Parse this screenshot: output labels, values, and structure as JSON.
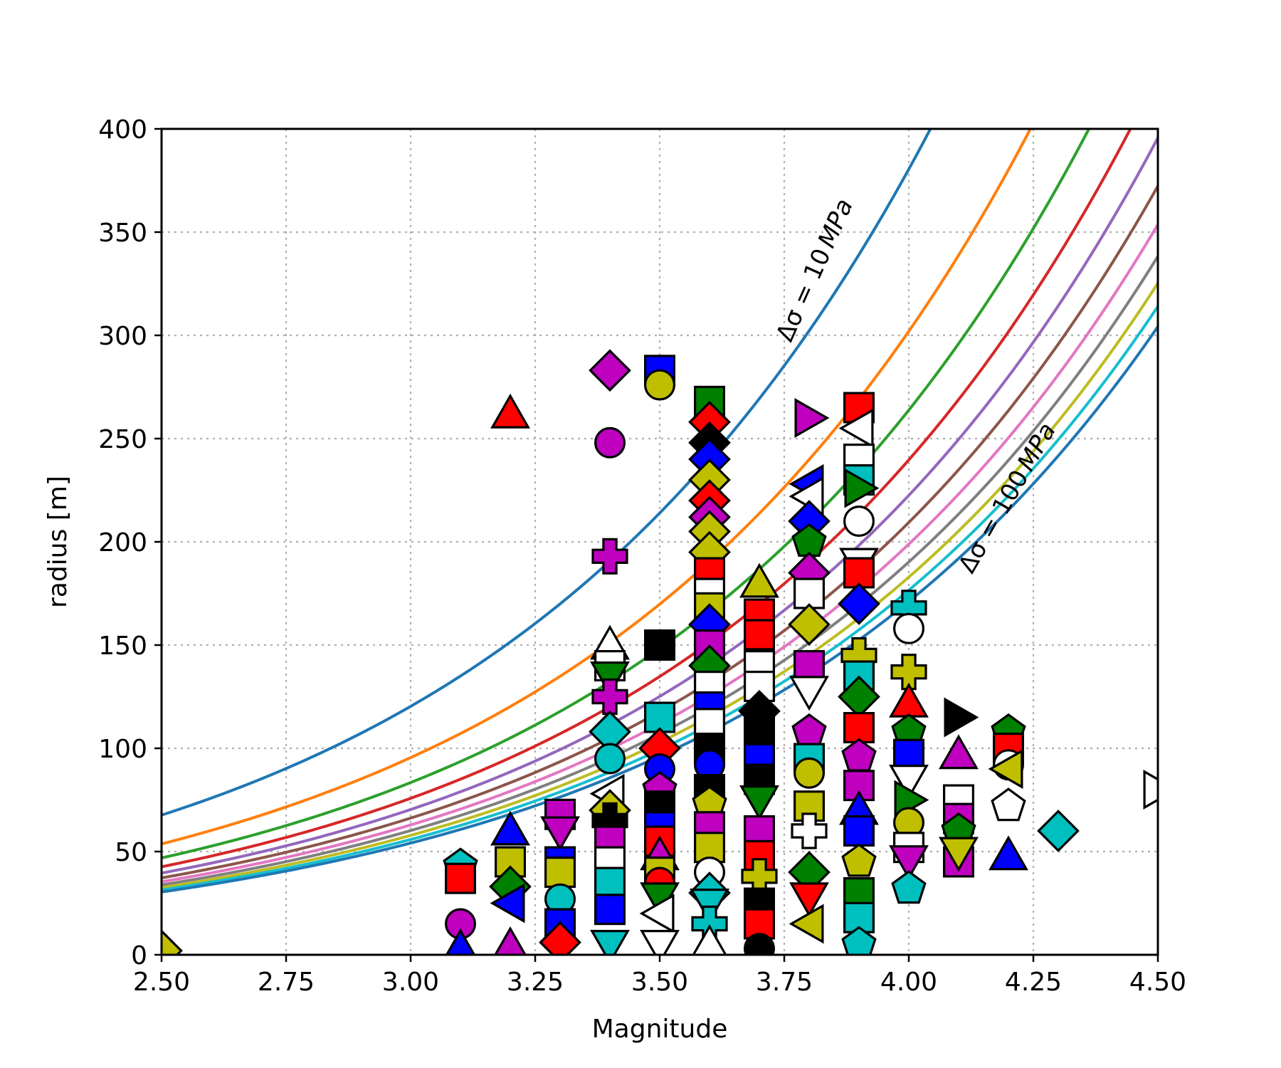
{
  "chart_data": {
    "type": "scatter",
    "title": "",
    "xlabel": "Magnitude",
    "ylabel": "radius [m]",
    "xlim": [
      2.5,
      4.5
    ],
    "ylim": [
      0,
      400
    ],
    "xticks": [
      "2.50",
      "2.75",
      "3.00",
      "3.25",
      "3.50",
      "3.75",
      "4.00",
      "4.25",
      "4.50"
    ],
    "yticks": [
      "0",
      "50",
      "100",
      "150",
      "200",
      "250",
      "300",
      "350",
      "400"
    ],
    "grid": true,
    "annotations": [
      {
        "text_prefix": "Δσ = ",
        "text_value": "10",
        "text_unit": "MPa"
      },
      {
        "text_prefix": "Δσ = ",
        "text_value": "100",
        "text_unit": "MPa"
      }
    ],
    "curves": {
      "x_range": [
        2.5,
        4.5
      ],
      "series": [
        {
          "stress_drop_mpa": 10,
          "color": "#1f77b4"
        },
        {
          "stress_drop_mpa": 20,
          "color": "#ff7f0e"
        },
        {
          "stress_drop_mpa": 30,
          "color": "#2ca02c"
        },
        {
          "stress_drop_mpa": 40,
          "color": "#d62728"
        },
        {
          "stress_drop_mpa": 50,
          "color": "#9467bd"
        },
        {
          "stress_drop_mpa": 60,
          "color": "#8c564b"
        },
        {
          "stress_drop_mpa": 70,
          "color": "#e377c2"
        },
        {
          "stress_drop_mpa": 80,
          "color": "#7f7f7f"
        },
        {
          "stress_drop_mpa": 90,
          "color": "#bcbd22"
        },
        {
          "stress_drop_mpa": 100,
          "color": "#17becf"
        },
        {
          "stress_drop_mpa": 110,
          "color": "#1f77b4"
        }
      ]
    },
    "points": [
      {
        "x": 2.5,
        "y": 2,
        "s": "d",
        "c": "y"
      },
      {
        "x": 3.1,
        "y": 43,
        "s": "p",
        "c": "c"
      },
      {
        "x": 3.1,
        "y": 37,
        "s": "s",
        "c": "r"
      },
      {
        "x": 3.1,
        "y": 15,
        "s": "o",
        "c": "m"
      },
      {
        "x": 3.1,
        "y": 3,
        "s": "^",
        "c": "b"
      },
      {
        "x": 3.2,
        "y": 262,
        "s": "^",
        "c": "r"
      },
      {
        "x": 3.2,
        "y": 60,
        "s": "^",
        "c": "b"
      },
      {
        "x": 3.2,
        "y": 45,
        "s": "s",
        "c": "y"
      },
      {
        "x": 3.2,
        "y": 33,
        "s": "d",
        "c": "g"
      },
      {
        "x": 3.2,
        "y": 25,
        "s": "<",
        "c": "b"
      },
      {
        "x": 3.2,
        "y": 4,
        "s": "^",
        "c": "m"
      },
      {
        "x": 3.3,
        "y": 68,
        "s": "s",
        "c": "m"
      },
      {
        "x": 3.3,
        "y": 60,
        "s": "v",
        "c": "m"
      },
      {
        "x": 3.3,
        "y": 45,
        "s": "s",
        "c": "b"
      },
      {
        "x": 3.3,
        "y": 40,
        "s": "s",
        "c": "y"
      },
      {
        "x": 3.3,
        "y": 27,
        "s": "o",
        "c": "c"
      },
      {
        "x": 3.3,
        "y": 15,
        "s": "s",
        "c": "b"
      },
      {
        "x": 3.3,
        "y": 6,
        "s": "d",
        "c": "r"
      },
      {
        "x": 3.4,
        "y": 283,
        "s": "d",
        "c": "m"
      },
      {
        "x": 3.4,
        "y": 248,
        "s": "o",
        "c": "m"
      },
      {
        "x": 3.4,
        "y": 193,
        "s": "P",
        "c": "m"
      },
      {
        "x": 3.4,
        "y": 150,
        "s": "^",
        "c": "w"
      },
      {
        "x": 3.4,
        "y": 140,
        "s": "s",
        "c": "w"
      },
      {
        "x": 3.4,
        "y": 135,
        "s": "v",
        "c": "g"
      },
      {
        "x": 3.4,
        "y": 125,
        "s": "P",
        "c": "m"
      },
      {
        "x": 3.4,
        "y": 108,
        "s": "d",
        "c": "c"
      },
      {
        "x": 3.4,
        "y": 95,
        "s": "o",
        "c": "c"
      },
      {
        "x": 3.4,
        "y": 78,
        "s": "<",
        "c": "w"
      },
      {
        "x": 3.4,
        "y": 70,
        "s": "d",
        "c": "y"
      },
      {
        "x": 3.4,
        "y": 65,
        "s": "P",
        "c": "k"
      },
      {
        "x": 3.4,
        "y": 55,
        "s": "s",
        "c": "m"
      },
      {
        "x": 3.4,
        "y": 45,
        "s": "s",
        "c": "w"
      },
      {
        "x": 3.4,
        "y": 35,
        "s": "s",
        "c": "c"
      },
      {
        "x": 3.4,
        "y": 22,
        "s": "s",
        "c": "b"
      },
      {
        "x": 3.4,
        "y": 5,
        "s": "v",
        "c": "c"
      },
      {
        "x": 3.5,
        "y": 283,
        "s": "s",
        "c": "b"
      },
      {
        "x": 3.5,
        "y": 276,
        "s": "o",
        "c": "y"
      },
      {
        "x": 3.5,
        "y": 150,
        "s": "s",
        "c": "k"
      },
      {
        "x": 3.5,
        "y": 115,
        "s": "s",
        "c": "c"
      },
      {
        "x": 3.5,
        "y": 100,
        "s": "d",
        "c": "r"
      },
      {
        "x": 3.5,
        "y": 90,
        "s": "o",
        "c": "b"
      },
      {
        "x": 3.5,
        "y": 80,
        "s": "p",
        "c": "m"
      },
      {
        "x": 3.5,
        "y": 72,
        "s": "s",
        "c": "k"
      },
      {
        "x": 3.5,
        "y": 62,
        "s": "s",
        "c": "b"
      },
      {
        "x": 3.5,
        "y": 55,
        "s": "s",
        "c": "r"
      },
      {
        "x": 3.5,
        "y": 48,
        "s": "^",
        "c": "m"
      },
      {
        "x": 3.5,
        "y": 40,
        "s": "s",
        "c": "y"
      },
      {
        "x": 3.5,
        "y": 35,
        "s": "o",
        "c": "r"
      },
      {
        "x": 3.5,
        "y": 28,
        "s": "v",
        "c": "g"
      },
      {
        "x": 3.5,
        "y": 20,
        "s": "<",
        "c": "w"
      },
      {
        "x": 3.5,
        "y": 5,
        "s": "v",
        "c": "w"
      },
      {
        "x": 3.6,
        "y": 268,
        "s": "s",
        "c": "g"
      },
      {
        "x": 3.6,
        "y": 258,
        "s": "d",
        "c": "r"
      },
      {
        "x": 3.6,
        "y": 248,
        "s": "d",
        "c": "k"
      },
      {
        "x": 3.6,
        "y": 240,
        "s": "d",
        "c": "b"
      },
      {
        "x": 3.6,
        "y": 230,
        "s": "d",
        "c": "y"
      },
      {
        "x": 3.6,
        "y": 220,
        "s": "d",
        "c": "r"
      },
      {
        "x": 3.6,
        "y": 212,
        "s": "d",
        "c": "m"
      },
      {
        "x": 3.6,
        "y": 205,
        "s": "d",
        "c": "y"
      },
      {
        "x": 3.6,
        "y": 195,
        "s": "d",
        "c": "y"
      },
      {
        "x": 3.6,
        "y": 185,
        "s": "s",
        "c": "r"
      },
      {
        "x": 3.6,
        "y": 175,
        "s": "s",
        "c": "w"
      },
      {
        "x": 3.6,
        "y": 168,
        "s": "s",
        "c": "y"
      },
      {
        "x": 3.6,
        "y": 160,
        "s": "d",
        "c": "b"
      },
      {
        "x": 3.6,
        "y": 150,
        "s": "s",
        "c": "m"
      },
      {
        "x": 3.6,
        "y": 140,
        "s": "d",
        "c": "g"
      },
      {
        "x": 3.6,
        "y": 130,
        "s": "s",
        "c": "w"
      },
      {
        "x": 3.6,
        "y": 120,
        "s": "s",
        "c": "b"
      },
      {
        "x": 3.6,
        "y": 112,
        "s": "s",
        "c": "w"
      },
      {
        "x": 3.6,
        "y": 100,
        "s": "s",
        "c": "k"
      },
      {
        "x": 3.6,
        "y": 92,
        "s": "o",
        "c": "b"
      },
      {
        "x": 3.6,
        "y": 80,
        "s": "s",
        "c": "k"
      },
      {
        "x": 3.6,
        "y": 73,
        "s": "p",
        "c": "y"
      },
      {
        "x": 3.6,
        "y": 62,
        "s": "s",
        "c": "m"
      },
      {
        "x": 3.6,
        "y": 52,
        "s": "s",
        "c": "y"
      },
      {
        "x": 3.6,
        "y": 40,
        "s": "o",
        "c": "w"
      },
      {
        "x": 3.6,
        "y": 30,
        "s": "d",
        "c": "c"
      },
      {
        "x": 3.6,
        "y": 25,
        "s": "v",
        "c": "c"
      },
      {
        "x": 3.6,
        "y": 15,
        "s": "P",
        "c": "c"
      },
      {
        "x": 3.6,
        "y": 5,
        "s": "^",
        "c": "w"
      },
      {
        "x": 3.7,
        "y": 180,
        "s": "^",
        "c": "y"
      },
      {
        "x": 3.7,
        "y": 165,
        "s": "s",
        "c": "r"
      },
      {
        "x": 3.7,
        "y": 155,
        "s": "s",
        "c": "r"
      },
      {
        "x": 3.7,
        "y": 140,
        "s": "s",
        "c": "w"
      },
      {
        "x": 3.7,
        "y": 130,
        "s": "s",
        "c": "w"
      },
      {
        "x": 3.7,
        "y": 118,
        "s": "d",
        "c": "k"
      },
      {
        "x": 3.7,
        "y": 108,
        "s": "s",
        "c": "k"
      },
      {
        "x": 3.7,
        "y": 95,
        "s": "s",
        "c": "b"
      },
      {
        "x": 3.7,
        "y": 85,
        "s": "s",
        "c": "k"
      },
      {
        "x": 3.7,
        "y": 75,
        "s": "v",
        "c": "g"
      },
      {
        "x": 3.7,
        "y": 60,
        "s": "s",
        "c": "m"
      },
      {
        "x": 3.7,
        "y": 48,
        "s": "s",
        "c": "r"
      },
      {
        "x": 3.7,
        "y": 38,
        "s": "P",
        "c": "y"
      },
      {
        "x": 3.7,
        "y": 25,
        "s": "s",
        "c": "k"
      },
      {
        "x": 3.7,
        "y": 15,
        "s": "s",
        "c": "r"
      },
      {
        "x": 3.7,
        "y": 3,
        "s": "o",
        "c": "k"
      },
      {
        "x": 3.8,
        "y": 260,
        "s": ">",
        "c": "m"
      },
      {
        "x": 3.8,
        "y": 228,
        "s": "<",
        "c": "b"
      },
      {
        "x": 3.8,
        "y": 222,
        "s": "<",
        "c": "w"
      },
      {
        "x": 3.8,
        "y": 210,
        "s": "d",
        "c": "b"
      },
      {
        "x": 3.8,
        "y": 200,
        "s": "p",
        "c": "g"
      },
      {
        "x": 3.8,
        "y": 185,
        "s": "d",
        "c": "m"
      },
      {
        "x": 3.8,
        "y": 175,
        "s": "s",
        "c": "w"
      },
      {
        "x": 3.8,
        "y": 160,
        "s": "d",
        "c": "y"
      },
      {
        "x": 3.8,
        "y": 140,
        "s": "s",
        "c": "m"
      },
      {
        "x": 3.8,
        "y": 128,
        "s": "v",
        "c": "w"
      },
      {
        "x": 3.8,
        "y": 108,
        "s": "p",
        "c": "m"
      },
      {
        "x": 3.8,
        "y": 95,
        "s": "s",
        "c": "c"
      },
      {
        "x": 3.8,
        "y": 88,
        "s": "o",
        "c": "y"
      },
      {
        "x": 3.8,
        "y": 72,
        "s": "s",
        "c": "y"
      },
      {
        "x": 3.8,
        "y": 60,
        "s": "P",
        "c": "w"
      },
      {
        "x": 3.8,
        "y": 40,
        "s": "d",
        "c": "g"
      },
      {
        "x": 3.8,
        "y": 28,
        "s": "v",
        "c": "r"
      },
      {
        "x": 3.8,
        "y": 15,
        "s": "<",
        "c": "y"
      },
      {
        "x": 3.9,
        "y": 265,
        "s": "s",
        "c": "r"
      },
      {
        "x": 3.9,
        "y": 255,
        "s": "<",
        "c": "w"
      },
      {
        "x": 3.9,
        "y": 240,
        "s": "s",
        "c": "w"
      },
      {
        "x": 3.9,
        "y": 230,
        "s": "s",
        "c": "c"
      },
      {
        "x": 3.9,
        "y": 226,
        "s": ">",
        "c": "g"
      },
      {
        "x": 3.9,
        "y": 210,
        "s": "o",
        "c": "w"
      },
      {
        "x": 3.9,
        "y": 190,
        "s": "v",
        "c": "w"
      },
      {
        "x": 3.9,
        "y": 185,
        "s": "s",
        "c": "r"
      },
      {
        "x": 3.9,
        "y": 170,
        "s": "d",
        "c": "b"
      },
      {
        "x": 3.9,
        "y": 145,
        "s": "P",
        "c": "y"
      },
      {
        "x": 3.9,
        "y": 135,
        "s": "s",
        "c": "c"
      },
      {
        "x": 3.9,
        "y": 125,
        "s": "d",
        "c": "g"
      },
      {
        "x": 3.9,
        "y": 110,
        "s": "s",
        "c": "r"
      },
      {
        "x": 3.9,
        "y": 96,
        "s": "p",
        "c": "m"
      },
      {
        "x": 3.9,
        "y": 82,
        "s": "s",
        "c": "m"
      },
      {
        "x": 3.9,
        "y": 70,
        "s": "^",
        "c": "b"
      },
      {
        "x": 3.9,
        "y": 60,
        "s": "s",
        "c": "b"
      },
      {
        "x": 3.9,
        "y": 45,
        "s": "p",
        "c": "y"
      },
      {
        "x": 3.9,
        "y": 30,
        "s": "s",
        "c": "g"
      },
      {
        "x": 3.9,
        "y": 18,
        "s": "s",
        "c": "c"
      },
      {
        "x": 3.9,
        "y": 5,
        "s": "p",
        "c": "c"
      },
      {
        "x": 4.0,
        "y": 168,
        "s": "P",
        "c": "c"
      },
      {
        "x": 4.0,
        "y": 158,
        "s": "o",
        "c": "w"
      },
      {
        "x": 4.0,
        "y": 137,
        "s": "P",
        "c": "y"
      },
      {
        "x": 4.0,
        "y": 122,
        "s": "^",
        "c": "r"
      },
      {
        "x": 4.0,
        "y": 108,
        "s": "p",
        "c": "g"
      },
      {
        "x": 4.0,
        "y": 97,
        "s": "s",
        "c": "b"
      },
      {
        "x": 4.0,
        "y": 85,
        "s": "v",
        "c": "w"
      },
      {
        "x": 4.0,
        "y": 75,
        "s": ">",
        "c": "g"
      },
      {
        "x": 4.0,
        "y": 64,
        "s": "o",
        "c": "y"
      },
      {
        "x": 4.0,
        "y": 52,
        "s": "s",
        "c": "w"
      },
      {
        "x": 4.0,
        "y": 46,
        "s": "v",
        "c": "m"
      },
      {
        "x": 4.0,
        "y": 32,
        "s": "p",
        "c": "c"
      },
      {
        "x": 4.1,
        "y": 115,
        "s": ">",
        "c": "k"
      },
      {
        "x": 4.1,
        "y": 97,
        "s": "^",
        "c": "m"
      },
      {
        "x": 4.1,
        "y": 75,
        "s": "s",
        "c": "w"
      },
      {
        "x": 4.1,
        "y": 66,
        "s": "s",
        "c": "m"
      },
      {
        "x": 4.1,
        "y": 60,
        "s": "p",
        "c": "g"
      },
      {
        "x": 4.1,
        "y": 45,
        "s": "s",
        "c": "m"
      },
      {
        "x": 4.1,
        "y": 50,
        "s": "v",
        "c": "y"
      },
      {
        "x": 4.2,
        "y": 108,
        "s": "p",
        "c": "g"
      },
      {
        "x": 4.2,
        "y": 100,
        "s": "s",
        "c": "r"
      },
      {
        "x": 4.2,
        "y": 92,
        "s": "o",
        "c": "w"
      },
      {
        "x": 4.2,
        "y": 90,
        "s": "<",
        "c": "y"
      },
      {
        "x": 4.2,
        "y": 72,
        "s": "p",
        "c": "w"
      },
      {
        "x": 4.2,
        "y": 48,
        "s": "^",
        "c": "b"
      },
      {
        "x": 4.3,
        "y": 60,
        "s": "d",
        "c": "c"
      },
      {
        "x": 4.5,
        "y": 80,
        "s": ">",
        "c": "w"
      }
    ],
    "marker_colors": {
      "b": "#0000ff",
      "g": "#008000",
      "r": "#ff0000",
      "c": "#00bfbf",
      "m": "#bf00bf",
      "y": "#bfbf00",
      "k": "#000000",
      "w": "#ffffff"
    }
  }
}
